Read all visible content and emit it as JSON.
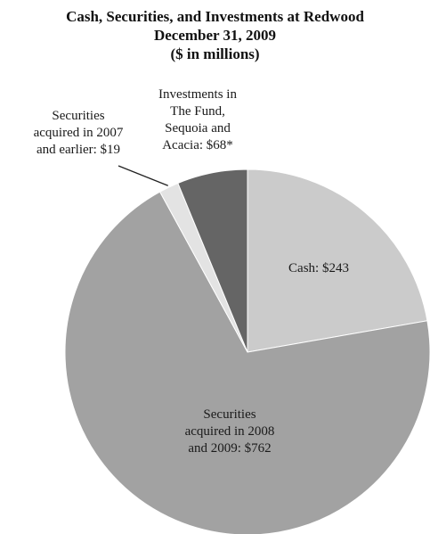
{
  "chart_data": {
    "type": "pie",
    "title": [
      "Cash, Securities, and Investments at Redwood",
      "December 31, 2009",
      "($ in millions)"
    ],
    "unit": "$ in millions",
    "slices": [
      {
        "name": "Cash",
        "value": 243,
        "color": "#cbcbcb",
        "label_lines": [
          "Cash: $243"
        ]
      },
      {
        "name": "Securities acquired in 2008 and 2009",
        "value": 762,
        "color": "#a2a2a2",
        "label_lines": [
          "Securities",
          "acquired in 2008",
          "and 2009: $762"
        ]
      },
      {
        "name": "Securities acquired in 2007 and earlier",
        "value": 19,
        "color": "#e3e3e3",
        "label_lines": [
          "Securities",
          "acquired in 2007",
          "and earlier: $19"
        ]
      },
      {
        "name": "Investments in The Fund, Sequoia and Acacia",
        "value": 68,
        "color": "#656565",
        "label_lines": [
          "Investments in",
          "The Fund,",
          "Sequoia and",
          "Acacia: $68*"
        ]
      }
    ]
  }
}
